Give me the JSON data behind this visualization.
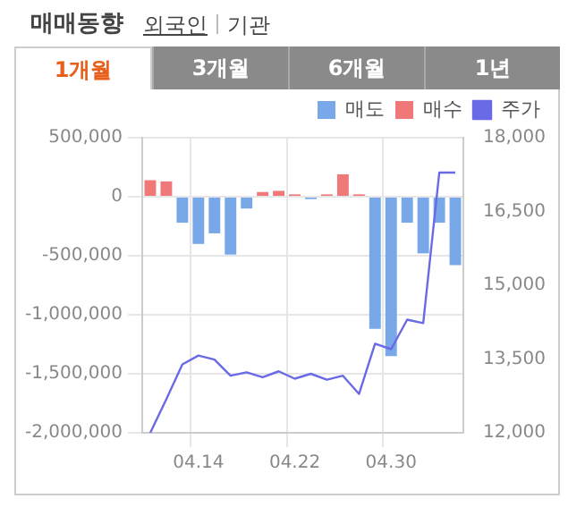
{
  "chart_data": {
    "type": "bar",
    "title": "매매동향",
    "annotations": [
      "외국인",
      "기관",
      "1개월",
      "3개월",
      "6개월",
      "1년"
    ],
    "categories": [
      null,
      null,
      null,
      "04.14",
      null,
      null,
      null,
      null,
      null,
      "04.22",
      null,
      null,
      null,
      null,
      null,
      "04.30",
      null,
      null,
      null,
      null
    ],
    "series": [
      {
        "name": "매도",
        "color": "#78a8e8",
        "values": [
          null,
          null,
          -220000,
          -400000,
          -310000,
          -490000,
          -100000,
          null,
          null,
          null,
          -20000,
          null,
          null,
          null,
          -1120000,
          -1350000,
          -220000,
          -480000,
          -220000,
          -580000
        ]
      },
      {
        "name": "매수",
        "color": "#f07878",
        "values": [
          140000,
          130000,
          null,
          null,
          null,
          null,
          null,
          40000,
          50000,
          20000,
          null,
          20000,
          190000,
          20000,
          null,
          null,
          null,
          null,
          null,
          null
        ]
      },
      {
        "name": "주가",
        "type": "line",
        "axis": "y2",
        "color": "#6a6ae6",
        "values": [
          12000,
          12680,
          13390,
          13570,
          13490,
          13160,
          13230,
          13130,
          13250,
          13100,
          13200,
          13080,
          13160,
          12790,
          13810,
          13700,
          14300,
          14230,
          17290,
          17290
        ]
      }
    ],
    "stacked": true,
    "ylim": [
      -2000000,
      500000
    ],
    "yticks": [
      {
        "value": -2000000,
        "label": "-2,000,000"
      },
      {
        "value": -1500000,
        "label": "-1,500,000"
      },
      {
        "value": -1000000,
        "label": "-1,000,000"
      },
      {
        "value": -500000,
        "label": "-500,000"
      },
      0,
      {
        "value": 500000,
        "label": "500,000"
      }
    ],
    "y2lim": [
      12000,
      18000
    ],
    "y2ticks": [
      {
        "value": 12000,
        "label": "12,000"
      },
      {
        "value": 13500,
        "label": "13,500"
      },
      {
        "value": 15000,
        "label": "15,000"
      },
      {
        "value": 16500,
        "label": "16,500"
      },
      {
        "value": 18000,
        "label": "18,000"
      }
    ],
    "grid": true,
    "legend": "top right",
    "marker": "none",
    "line_style": "solid"
  }
}
